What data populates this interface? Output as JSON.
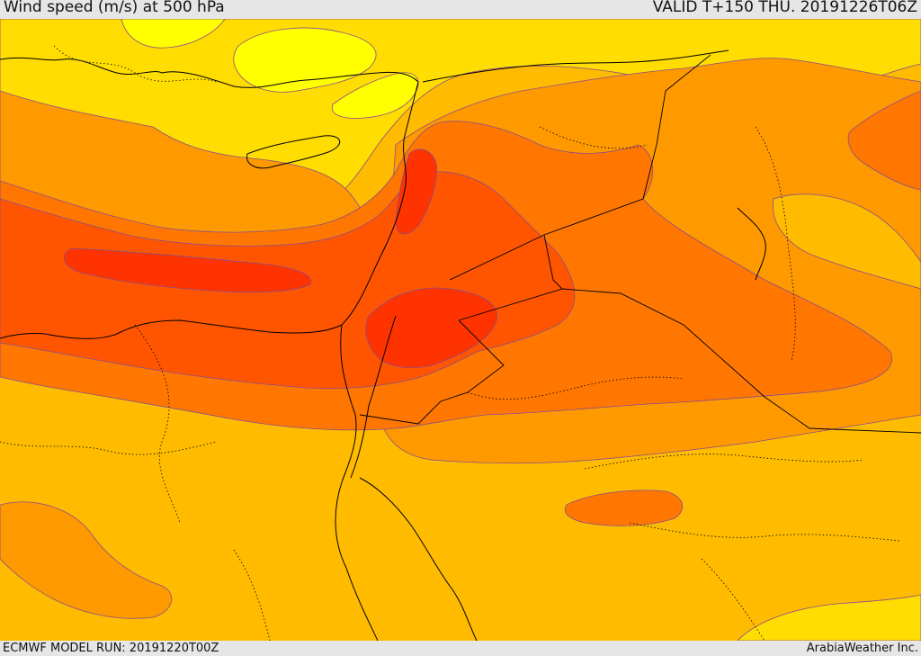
{
  "header": {
    "title": "Wind speed (m/s) at 500 hPa",
    "valid_time": "VALID T+150 THU. 20191226T06Z"
  },
  "footer": {
    "model_run": "ECMWF MODEL RUN: 20191220T00Z",
    "credit": "ArabiaWeather Inc."
  },
  "colors": {
    "level_1": "#ffff00",
    "level_2": "#ffdd00",
    "level_3": "#ffbb00",
    "level_4": "#ff9900",
    "level_5": "#ff7700",
    "level_6": "#ff5500",
    "level_7": "#ff3300",
    "contour_line": "#8a4d8a",
    "coast_border": "#000000"
  }
}
